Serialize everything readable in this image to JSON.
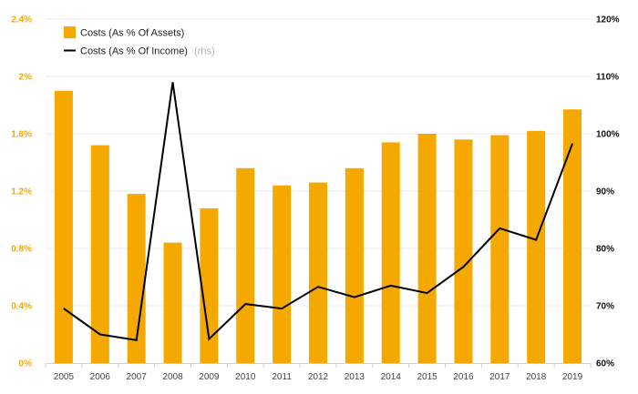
{
  "chart_data": {
    "type": "bar",
    "categories": [
      "2005",
      "2006",
      "2007",
      "2008",
      "2009",
      "2010",
      "2011",
      "2012",
      "2013",
      "2014",
      "2015",
      "2016",
      "2017",
      "2018",
      "2019"
    ],
    "series": [
      {
        "name": "Costs (As % Of Assets)",
        "type": "bar",
        "axis": "left",
        "color": "#f5a800",
        "values": [
          1.9,
          1.52,
          1.18,
          0.84,
          1.08,
          1.36,
          1.24,
          1.26,
          1.36,
          1.54,
          1.6,
          1.56,
          1.59,
          1.62,
          1.77
        ]
      },
      {
        "name": "Costs (As % Of Income)",
        "type": "line",
        "axis": "right",
        "color": "#000000",
        "values": [
          69.5,
          65.0,
          64.0,
          109.0,
          64.2,
          70.3,
          69.5,
          73.3,
          71.5,
          73.5,
          72.2,
          76.8,
          83.5,
          81.5,
          98.3
        ]
      }
    ],
    "legend": {
      "items": [
        "Costs (As % Of Assets)",
        "Costs (As % Of Income)"
      ],
      "rhs_note": "(rhs)",
      "placement": "top-left"
    },
    "y_left": {
      "ticks": [
        "0%",
        "0.4%",
        "0.8%",
        "1.2%",
        "1.6%",
        "2%",
        "2.4%"
      ],
      "ylim": [
        0,
        2.4
      ],
      "color": "#f5a800"
    },
    "y_right": {
      "ticks": [
        "60%",
        "70%",
        "80%",
        "90%",
        "100%",
        "110%",
        "120%"
      ],
      "ylim": [
        60,
        120
      ]
    },
    "grid": true,
    "title": "",
    "xlabel": "",
    "ylabel": ""
  }
}
